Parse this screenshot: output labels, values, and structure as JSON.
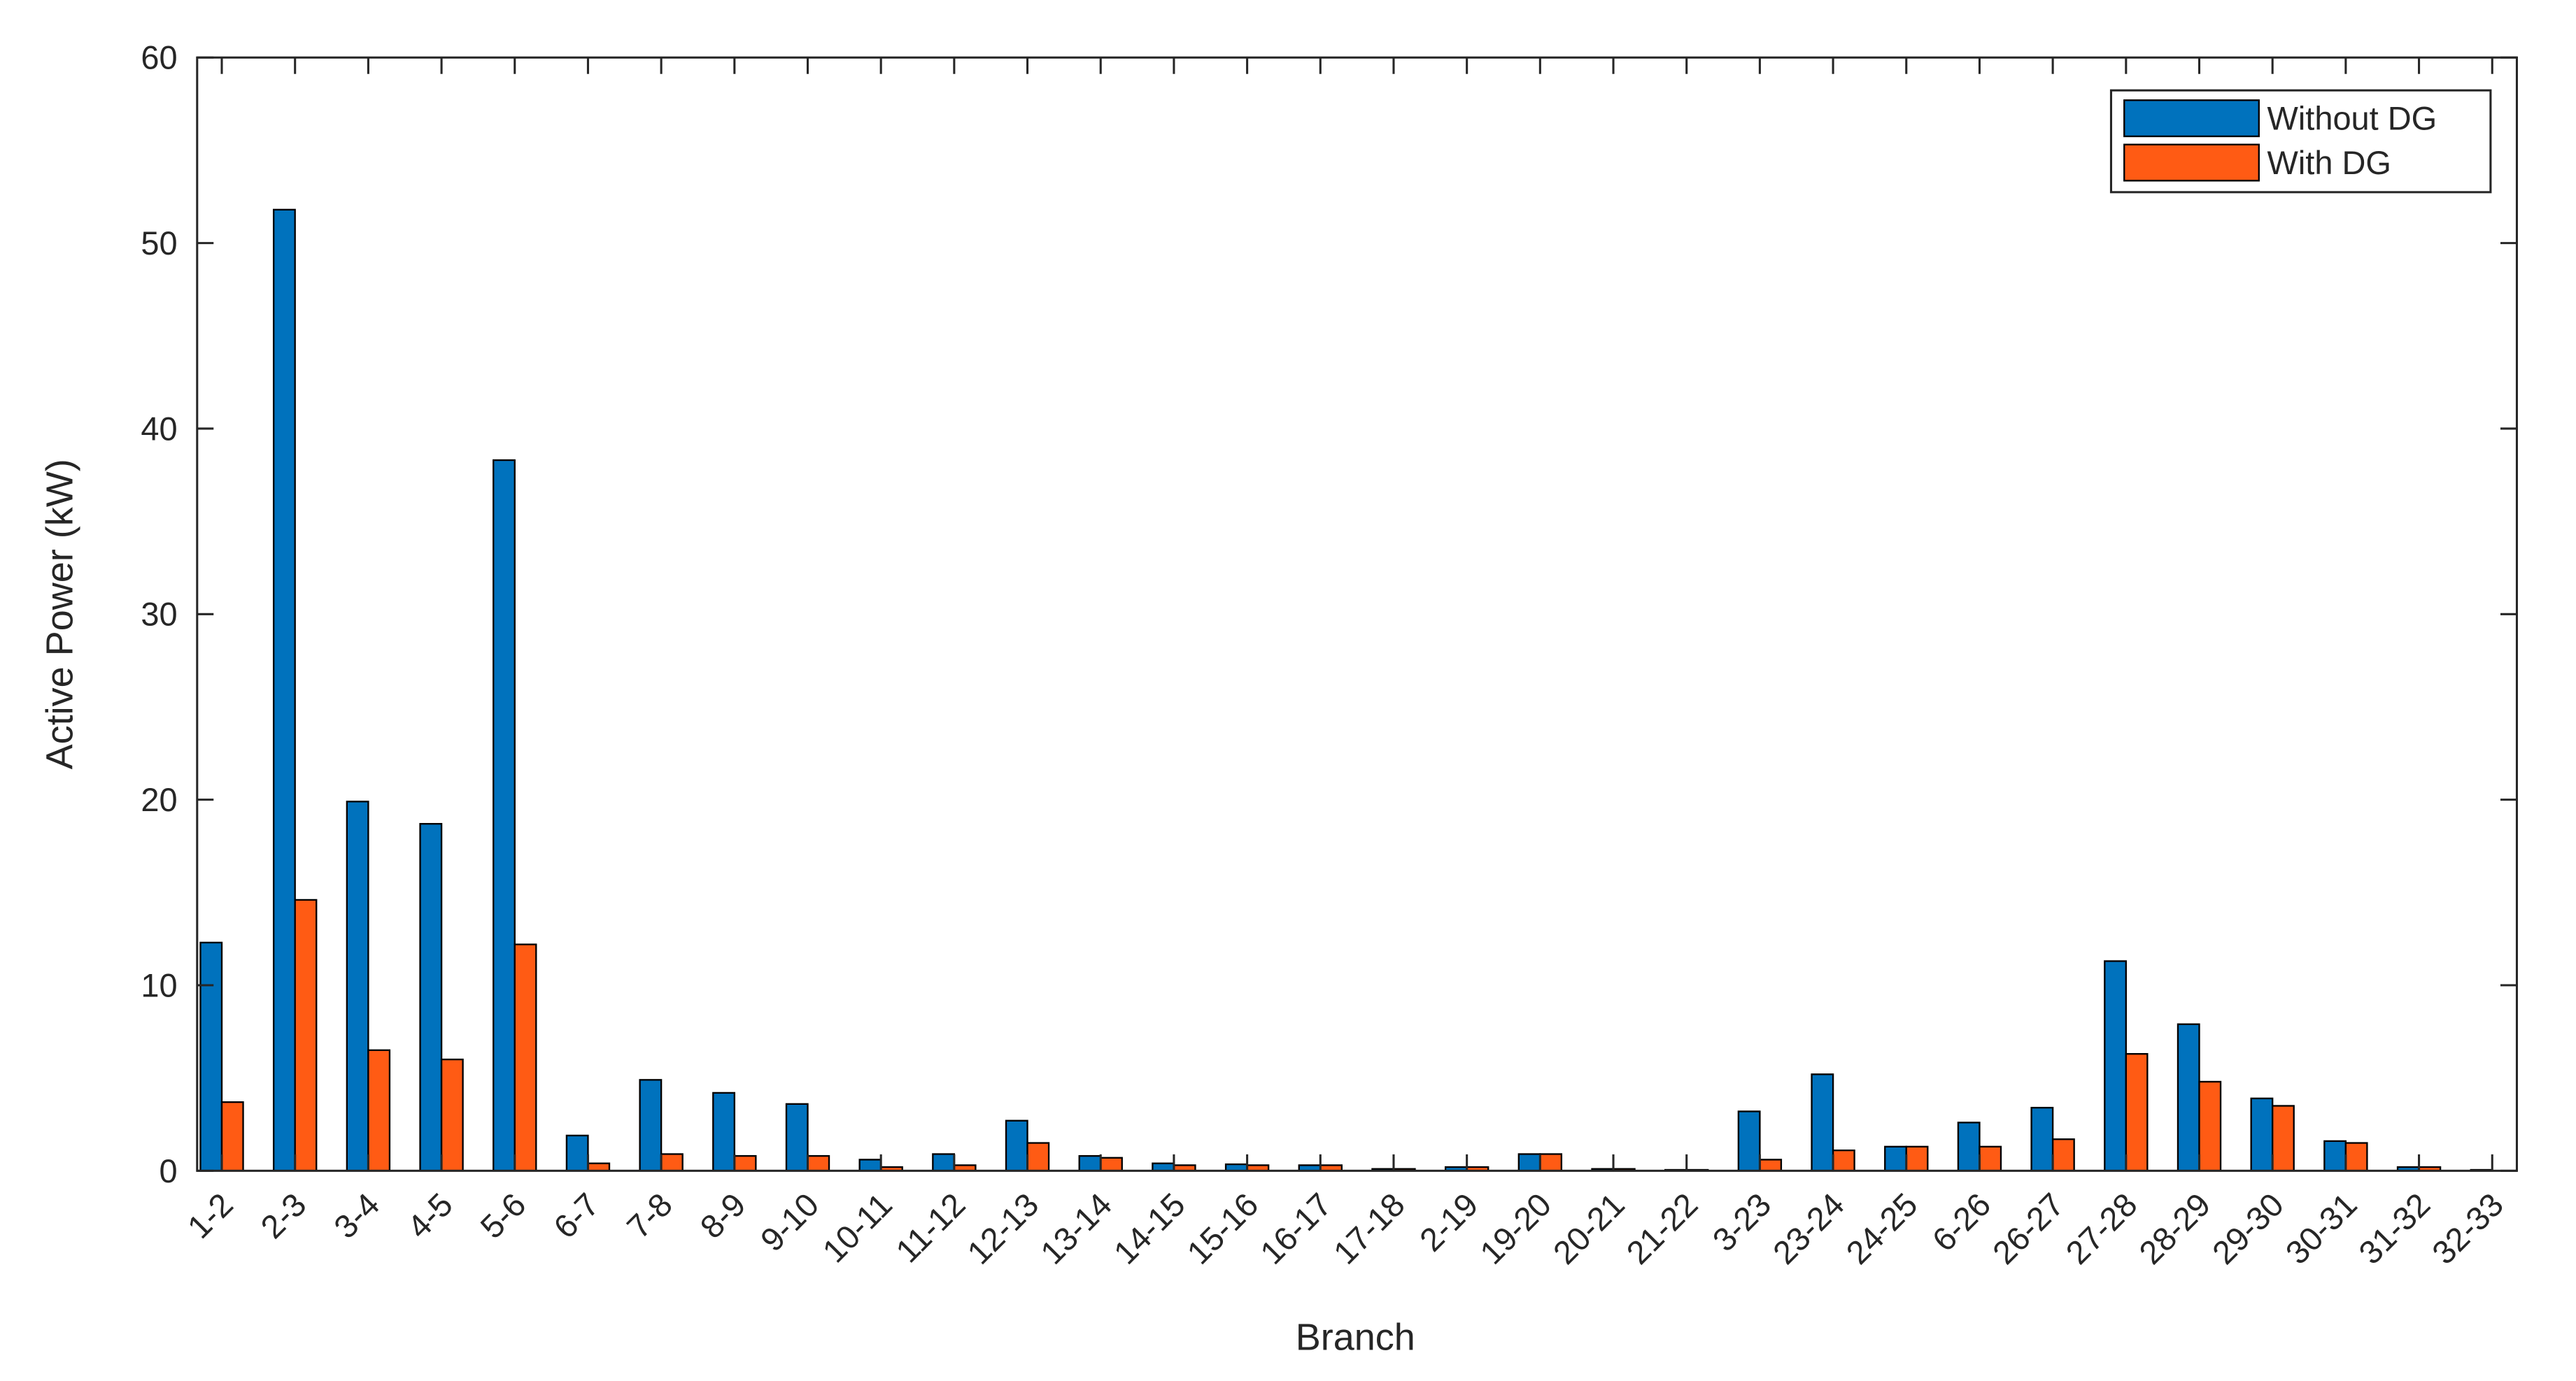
{
  "chart_data": {
    "type": "bar",
    "x_label": "Branch",
    "y_label": "Active Power (kW)",
    "categories": [
      "1-2",
      "2-3",
      "3-4",
      "4-5",
      "5-6",
      "6-7",
      "7-8",
      "8-9",
      "9-10",
      "10-11",
      "11-12",
      "12-13",
      "13-14",
      "14-15",
      "15-16",
      "16-17",
      "17-18",
      "2-19",
      "19-20",
      "20-21",
      "21-22",
      "3-23",
      "23-24",
      "24-25",
      "6-26",
      "26-27",
      "27-28",
      "28-29",
      "29-30",
      "30-31",
      "31-32",
      "32-33"
    ],
    "series": [
      {
        "name": "Without DG",
        "color": "#0072bd",
        "values": [
          12.3,
          51.8,
          19.9,
          18.7,
          38.3,
          1.9,
          4.9,
          4.2,
          3.6,
          0.6,
          0.9,
          2.7,
          0.8,
          0.4,
          0.35,
          0.3,
          0.1,
          0.2,
          0.9,
          0.1,
          0.05,
          3.2,
          5.2,
          1.3,
          2.6,
          3.4,
          11.3,
          7.9,
          3.9,
          1.6,
          0.2,
          0.05
        ]
      },
      {
        "name": "With DG",
        "color": "#ff5b14",
        "values": [
          3.7,
          14.6,
          6.5,
          6.0,
          12.2,
          0.4,
          0.9,
          0.8,
          0.8,
          0.2,
          0.3,
          1.5,
          0.7,
          0.3,
          0.3,
          0.3,
          0.1,
          0.2,
          0.9,
          0.1,
          0.05,
          0.6,
          1.1,
          1.3,
          1.3,
          1.7,
          6.3,
          4.8,
          3.5,
          1.5,
          0.2,
          0
        ]
      }
    ],
    "ylim": [
      0,
      60
    ],
    "yticks": [
      0,
      10,
      20,
      30,
      40,
      50,
      60
    ],
    "legend": "upper right"
  }
}
